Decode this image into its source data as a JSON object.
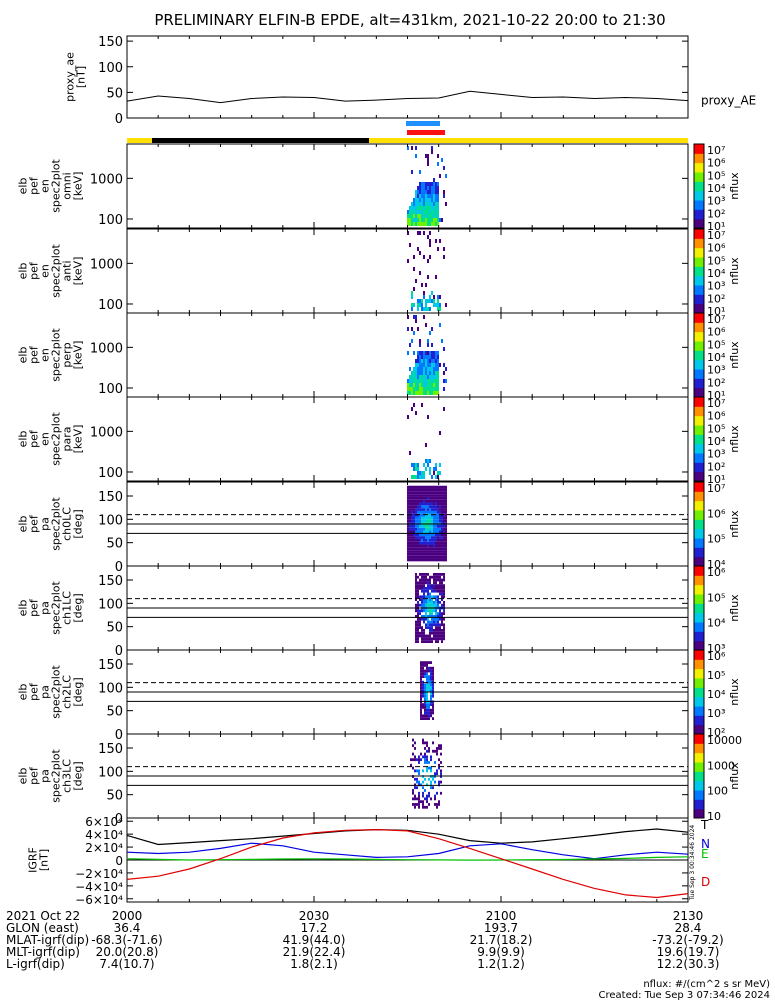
{
  "title": "PRELIMINARY ELFIN-B EPDE, alt=431km, 2021-10-22 20:00 to 21:30",
  "chart_data": [
    {
      "type": "line",
      "id": "proxy_ae",
      "ylabel": [
        "proxy_ae",
        "[nT]"
      ],
      "legend": "proxy_AE",
      "ylim": [
        0,
        160
      ],
      "yticks": [
        0,
        50,
        100,
        150
      ],
      "x_minutes": [
        0,
        5,
        10,
        15,
        20,
        25,
        30,
        35,
        40,
        45,
        50,
        55,
        60,
        65,
        70,
        75,
        80,
        85,
        90
      ],
      "values": [
        33,
        43,
        38,
        30,
        38,
        41,
        40,
        33,
        35,
        38,
        39,
        52,
        46,
        40,
        41,
        38,
        40,
        38,
        34
      ]
    },
    {
      "type": "heatmap",
      "id": "en_omni",
      "ylabel": [
        "elb",
        "pef",
        "en",
        "spec2plot",
        "omni",
        "[keV]"
      ],
      "yscale": "log",
      "ylim": [
        60,
        7000
      ],
      "yticks": [
        100,
        1000
      ],
      "colorbar": {
        "label": "nflux",
        "ticks": [
          "10⁷",
          "10⁶",
          "10⁵",
          "10⁴",
          "10³",
          "10²",
          "10¹"
        ]
      }
    },
    {
      "type": "heatmap",
      "id": "en_anti",
      "ylabel": [
        "elb",
        "pef",
        "en",
        "spec2plot",
        "anti",
        "[keV]"
      ],
      "yscale": "log",
      "ylim": [
        60,
        7000
      ],
      "yticks": [
        100,
        1000
      ],
      "colorbar": {
        "label": "nflux",
        "ticks": [
          "10⁷",
          "10⁶",
          "10⁵",
          "10⁴",
          "10³",
          "10²",
          "10¹"
        ]
      }
    },
    {
      "type": "heatmap",
      "id": "en_perp",
      "ylabel": [
        "elb",
        "pef",
        "en",
        "spec2plot",
        "perp",
        "[keV]"
      ],
      "yscale": "log",
      "ylim": [
        60,
        7000
      ],
      "yticks": [
        100,
        1000
      ],
      "colorbar": {
        "label": "nflux",
        "ticks": [
          "10⁷",
          "10⁶",
          "10⁵",
          "10⁴",
          "10³",
          "10²",
          "10¹"
        ]
      }
    },
    {
      "type": "heatmap",
      "id": "en_para",
      "ylabel": [
        "elb",
        "pef",
        "en",
        "spec2plot",
        "para",
        "[keV]"
      ],
      "yscale": "log",
      "ylim": [
        60,
        7000
      ],
      "yticks": [
        100,
        1000
      ],
      "colorbar": {
        "label": "nflux",
        "ticks": [
          "10⁷",
          "10⁶",
          "10⁵",
          "10⁴",
          "10³",
          "10²",
          "10¹"
        ]
      }
    },
    {
      "type": "heatmap",
      "id": "pa_ch0",
      "ylabel": [
        "elb",
        "pef",
        "pa",
        "spec2plot",
        "ch0LC",
        "[deg]"
      ],
      "ylim": [
        0,
        180
      ],
      "yticks": [
        0,
        50,
        100,
        150
      ],
      "colorbar": {
        "label": "nflux",
        "ticks": [
          "10⁷",
          "10⁶",
          "10⁵",
          "10⁴"
        ]
      }
    },
    {
      "type": "heatmap",
      "id": "pa_ch1",
      "ylabel": [
        "elb",
        "pef",
        "pa",
        "spec2plot",
        "ch1LC",
        "[deg]"
      ],
      "ylim": [
        0,
        180
      ],
      "yticks": [
        0,
        50,
        100,
        150
      ],
      "colorbar": {
        "label": "nflux",
        "ticks": [
          "10⁶",
          "10⁵",
          "10⁴",
          "10³"
        ]
      }
    },
    {
      "type": "heatmap",
      "id": "pa_ch2",
      "ylabel": [
        "elb",
        "pef",
        "pa",
        "spec2plot",
        "ch2LC",
        "[deg]"
      ],
      "ylim": [
        0,
        180
      ],
      "yticks": [
        0,
        50,
        100,
        150
      ],
      "colorbar": {
        "label": "nflux",
        "ticks": [
          "10⁶",
          "10⁵",
          "10⁴",
          "10³",
          "10²"
        ]
      }
    },
    {
      "type": "heatmap",
      "id": "pa_ch3",
      "ylabel": [
        "elb",
        "pef",
        "pa",
        "spec2plot",
        "ch3LC",
        "[deg]"
      ],
      "ylim": [
        0,
        180
      ],
      "yticks": [
        0,
        50,
        100,
        150
      ],
      "colorbar": {
        "label": "nflux",
        "ticks": [
          "10000",
          "1000",
          "100",
          "10"
        ]
      }
    },
    {
      "type": "line",
      "id": "igrf",
      "ylabel": [
        "IGRF",
        "[nT]"
      ],
      "ylim": [
        -65000,
        65000
      ],
      "ytick_values": [
        60000,
        40000,
        20000,
        0,
        -20000,
        -40000,
        -60000
      ],
      "ytick_labels": [
        "6×10⁴",
        "4×10⁴",
        "2×10⁴",
        "0",
        "−2×10⁴",
        "−4×10⁴",
        "−6×10⁴"
      ],
      "x_minutes": [
        0,
        5,
        10,
        15,
        20,
        25,
        30,
        35,
        40,
        45,
        50,
        55,
        60,
        65,
        70,
        75,
        80,
        85,
        90
      ],
      "series": [
        {
          "name": "T",
          "color": "#000000",
          "values": [
            38000,
            24000,
            27000,
            30000,
            33000,
            37000,
            41000,
            45000,
            47000,
            46000,
            40000,
            30000,
            26000,
            28000,
            33000,
            38000,
            44000,
            48000,
            43000
          ]
        },
        {
          "name": "N",
          "color": "#0000e0",
          "values": [
            12000,
            10000,
            12000,
            18000,
            26000,
            22000,
            12000,
            8000,
            4000,
            5000,
            10000,
            22000,
            25000,
            16000,
            8000,
            2000,
            8000,
            12000,
            9000
          ]
        },
        {
          "name": "E",
          "color": "#00c000",
          "values": [
            2000,
            1000,
            0,
            500,
            1000,
            1500,
            1800,
            1500,
            1000,
            500,
            200,
            -200,
            0,
            400,
            800,
            1500,
            2500,
            4000,
            5000
          ]
        },
        {
          "name": "D",
          "color": "#e00000",
          "values": [
            -30000,
            -25000,
            -14000,
            2000,
            20000,
            34000,
            42000,
            46000,
            47000,
            45000,
            33000,
            18000,
            2000,
            -14000,
            -30000,
            -44000,
            -54000,
            -58000,
            -52000
          ]
        }
      ]
    }
  ],
  "xaxis": {
    "rows": [
      {
        "label": "2021 Oct 22",
        "values": [
          "2000",
          "2030",
          "2100",
          "2130"
        ]
      },
      {
        "label": "GLON (east)",
        "values": [
          "36.4",
          "17.2",
          "193.7",
          "28.4"
        ]
      },
      {
        "label": "MLAT-igrf(dip)",
        "values": [
          "-68.3(-71.6)",
          "41.9(44.0)",
          "21.7(18.2)",
          "-73.2(-79.2)"
        ]
      },
      {
        "label": "MLT-igrf(dip)",
        "values": [
          "20.0(20.8)",
          "21.9(22.4)",
          "9.9(9.9)",
          "19.6(19.7)"
        ]
      },
      {
        "label": "L-igrf(dip)",
        "values": [
          "7.4(10.7)",
          "1.8(2.1)",
          "1.2(1.2)",
          "12.2(30.3)"
        ]
      }
    ]
  },
  "footer": {
    "units": "nflux: #/(cm^2 s sr MeV)",
    "created": "Created: Tue Sep  3 07:34:46 2024",
    "side_stamp": "Tue Sep  3 00:34:46 2024"
  },
  "colors": {
    "sun_bar": "#ffe000",
    "shadow_bar": "#000000",
    "sci_blue": "#1e90ff",
    "sci_red": "#ff1010"
  }
}
